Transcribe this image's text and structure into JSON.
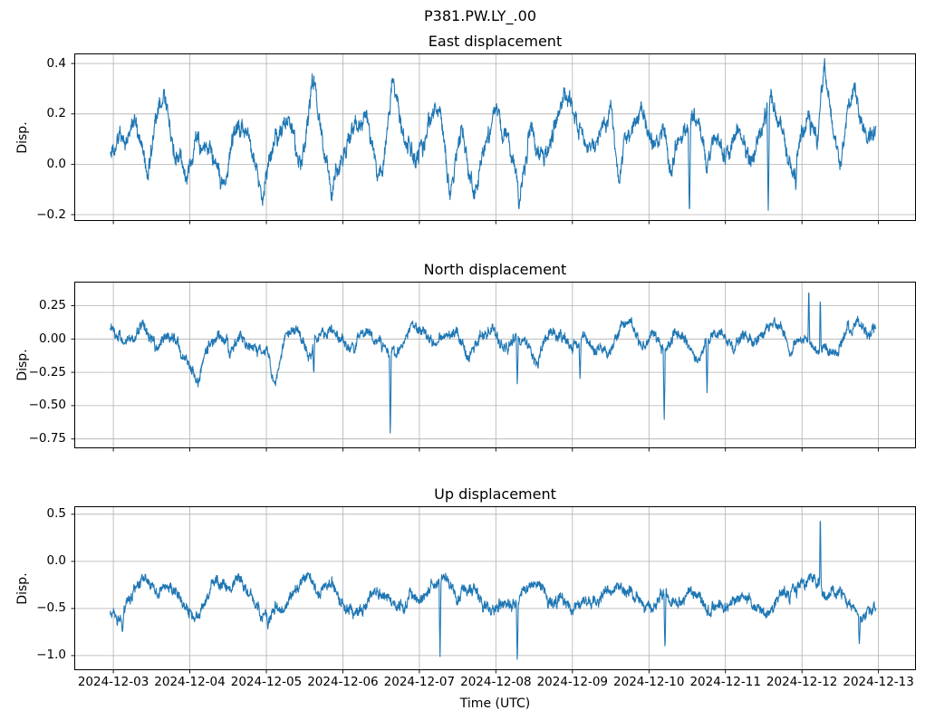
{
  "figure": {
    "suptitle": "P381.PW.LY_.00",
    "xlabel": "Time (UTC)",
    "background_color": "#ffffff",
    "line_color": "#1f77b4",
    "grid_color": "#b0b0b0",
    "frame_color": "#000000",
    "text_color": "#000000"
  },
  "chart_data": {
    "type": "line",
    "title": "P381.PW.LY_.00",
    "xlabel": "Time (UTC)",
    "grid": true,
    "legend": null,
    "x_days_origin": "2024-12-03",
    "xlim_days": [
      -0.51,
      10.49
    ],
    "x_tick_days": [
      0,
      1,
      2,
      3,
      4,
      5,
      6,
      7,
      8,
      9,
      10
    ],
    "x_tick_labels": [
      "2024-12-03",
      "2024-12-04",
      "2024-12-05",
      "2024-12-06",
      "2024-12-07",
      "2024-12-08",
      "2024-12-09",
      "2024-12-10",
      "2024-12-11",
      "2024-12-12",
      "2024-12-13"
    ],
    "subplots": [
      {
        "name": "east",
        "title": "East displacement",
        "ylabel": "Disp.",
        "ylim": [
          -0.225,
          0.44
        ],
        "yticks": [
          -0.2,
          0.0,
          0.2,
          0.4
        ],
        "ytick_labels": [
          "−0.2",
          "0.0",
          "0.2",
          "0.4"
        ],
        "trange": [
          -0.04,
          9.97
        ],
        "clip": [
          -0.215,
          0.42
        ],
        "envelope": [
          [
            -0.04,
            0.05
          ],
          [
            0.1,
            0.1
          ],
          [
            0.3,
            0.16
          ],
          [
            0.45,
            -0.06
          ],
          [
            0.55,
            0.2
          ],
          [
            0.68,
            0.3
          ],
          [
            0.8,
            0.02
          ],
          [
            0.95,
            -0.03
          ],
          [
            1.1,
            0.12
          ],
          [
            1.25,
            0.05
          ],
          [
            1.45,
            -0.1
          ],
          [
            1.6,
            0.18
          ],
          [
            1.75,
            0.1
          ],
          [
            1.95,
            -0.14
          ],
          [
            2.1,
            0.08
          ],
          [
            2.3,
            0.22
          ],
          [
            2.45,
            0.0
          ],
          [
            2.6,
            0.31
          ],
          [
            2.7,
            0.18
          ],
          [
            2.85,
            -0.1
          ],
          [
            3.0,
            0.02
          ],
          [
            3.15,
            0.15
          ],
          [
            3.3,
            0.2
          ],
          [
            3.45,
            -0.08
          ],
          [
            3.55,
            0.05
          ],
          [
            3.65,
            0.33
          ],
          [
            3.8,
            0.1
          ],
          [
            3.95,
            0.0
          ],
          [
            4.1,
            0.15
          ],
          [
            4.25,
            0.21
          ],
          [
            4.4,
            -0.12
          ],
          [
            4.55,
            0.1
          ],
          [
            4.7,
            -0.12
          ],
          [
            4.85,
            0.05
          ],
          [
            5.0,
            0.18
          ],
          [
            5.15,
            0.12
          ],
          [
            5.3,
            -0.1
          ],
          [
            5.45,
            0.15
          ],
          [
            5.6,
            0.05
          ],
          [
            5.75,
            0.1
          ],
          [
            5.9,
            0.3
          ],
          [
            6.05,
            0.15
          ],
          [
            6.2,
            0.05
          ],
          [
            6.35,
            0.1
          ],
          [
            6.5,
            0.2
          ],
          [
            6.6,
            -0.08
          ],
          [
            6.75,
            0.12
          ],
          [
            6.9,
            0.25
          ],
          [
            7.05,
            0.1
          ],
          [
            7.2,
            0.15
          ],
          [
            7.3,
            -0.02
          ],
          [
            7.45,
            0.08
          ],
          [
            7.6,
            0.22
          ],
          [
            7.75,
            0.05
          ],
          [
            7.85,
            0.13
          ],
          [
            8.0,
            0.05
          ],
          [
            8.15,
            0.12
          ],
          [
            8.3,
            0.02
          ],
          [
            8.45,
            0.1
          ],
          [
            8.6,
            0.29
          ],
          [
            8.75,
            0.1
          ],
          [
            8.9,
            -0.05
          ],
          [
            9.0,
            0.12
          ],
          [
            9.1,
            0.2
          ],
          [
            9.2,
            0.05
          ],
          [
            9.3,
            0.4
          ],
          [
            9.4,
            0.1
          ],
          [
            9.5,
            -0.02
          ],
          [
            9.6,
            0.25
          ],
          [
            9.7,
            0.33
          ],
          [
            9.8,
            0.2
          ],
          [
            9.9,
            0.08
          ],
          [
            9.97,
            0.12
          ]
        ],
        "spikes": [
          [
            5.3,
            -0.18,
            0.012
          ],
          [
            7.53,
            -0.21,
            0.015
          ],
          [
            8.56,
            -0.19,
            0.015
          ],
          [
            8.92,
            -0.11,
            0.012
          ]
        ],
        "noise": {
          "seed": 7,
          "jitter": 0.022,
          "octaves": [
            [
              0.35,
              0.028
            ],
            [
              0.12,
              0.03
            ],
            [
              0.04,
              0.028
            ],
            [
              0.013,
              0.026
            ]
          ]
        }
      },
      {
        "name": "north",
        "title": "North displacement",
        "ylabel": "Disp.",
        "ylim": [
          -0.82,
          0.43
        ],
        "yticks": [
          -0.75,
          -0.5,
          -0.25,
          0.0,
          0.25
        ],
        "ytick_labels": [
          "−0.75",
          "−0.50",
          "−0.25",
          "0.00",
          "0.25"
        ],
        "trange": [
          -0.04,
          9.97
        ],
        "clip": [
          -0.8,
          0.41
        ],
        "envelope": [
          [
            -0.04,
            0.12
          ],
          [
            0.1,
            -0.02
          ],
          [
            0.25,
            0.04
          ],
          [
            0.4,
            0.1
          ],
          [
            0.55,
            -0.04
          ],
          [
            0.7,
            0.08
          ],
          [
            0.85,
            -0.02
          ],
          [
            0.95,
            -0.12
          ],
          [
            1.1,
            -0.28
          ],
          [
            1.25,
            0.02
          ],
          [
            1.4,
            0.08
          ],
          [
            1.55,
            -0.06
          ],
          [
            1.7,
            0.04
          ],
          [
            1.85,
            -0.02
          ],
          [
            2.0,
            -0.08
          ],
          [
            2.1,
            -0.3
          ],
          [
            2.25,
            0.05
          ],
          [
            2.4,
            0.1
          ],
          [
            2.55,
            -0.15
          ],
          [
            2.7,
            0.02
          ],
          [
            2.85,
            0.08
          ],
          [
            3.0,
            -0.02
          ],
          [
            3.15,
            -0.1
          ],
          [
            3.3,
            0.05
          ],
          [
            3.45,
            0.0
          ],
          [
            3.6,
            -0.08
          ],
          [
            3.75,
            -0.12
          ],
          [
            3.9,
            0.06
          ],
          [
            4.05,
            0.1
          ],
          [
            4.2,
            -0.05
          ],
          [
            4.35,
            0.02
          ],
          [
            4.5,
            0.08
          ],
          [
            4.65,
            -0.15
          ],
          [
            4.8,
            -0.02
          ],
          [
            4.95,
            0.06
          ],
          [
            5.1,
            -0.1
          ],
          [
            5.25,
            0.02
          ],
          [
            5.4,
            -0.05
          ],
          [
            5.55,
            -0.18
          ],
          [
            5.7,
            0.08
          ],
          [
            5.85,
            0.02
          ],
          [
            6.0,
            -0.06
          ],
          [
            6.15,
            0.05
          ],
          [
            6.3,
            -0.02
          ],
          [
            6.45,
            -0.12
          ],
          [
            6.6,
            0.06
          ],
          [
            6.75,
            0.1
          ],
          [
            6.9,
            -0.04
          ],
          [
            7.05,
            0.02
          ],
          [
            7.2,
            -0.1
          ],
          [
            7.35,
            0.05
          ],
          [
            7.5,
            0.0
          ],
          [
            7.65,
            -0.15
          ],
          [
            7.8,
            0.04
          ],
          [
            7.95,
            0.08
          ],
          [
            8.1,
            -0.06
          ],
          [
            8.25,
            0.02
          ],
          [
            8.4,
            -0.02
          ],
          [
            8.55,
            0.06
          ],
          [
            8.7,
            0.12
          ],
          [
            8.85,
            -0.06
          ],
          [
            9.0,
            0.04
          ],
          [
            9.15,
            0.0
          ],
          [
            9.3,
            -0.08
          ],
          [
            9.45,
            -0.12
          ],
          [
            9.6,
            0.08
          ],
          [
            9.75,
            0.12
          ],
          [
            9.9,
            0.06
          ],
          [
            9.97,
            0.1
          ]
        ],
        "spikes": [
          [
            1.08,
            -0.33,
            0.015
          ],
          [
            2.1,
            -0.32,
            0.015
          ],
          [
            2.62,
            -0.27,
            0.012
          ],
          [
            3.62,
            -0.75,
            0.012
          ],
          [
            5.28,
            -0.36,
            0.012
          ],
          [
            6.1,
            -0.31,
            0.012
          ],
          [
            7.2,
            -0.63,
            0.012
          ],
          [
            7.76,
            -0.42,
            0.012
          ],
          [
            9.09,
            0.4,
            0.01
          ],
          [
            9.24,
            0.33,
            0.01
          ]
        ],
        "noise": {
          "seed": 13,
          "jitter": 0.026,
          "octaves": [
            [
              0.35,
              0.03
            ],
            [
              0.12,
              0.032
            ],
            [
              0.04,
              0.03
            ],
            [
              0.013,
              0.028
            ]
          ]
        }
      },
      {
        "name": "up",
        "title": "Up displacement",
        "ylabel": "Disp.",
        "ylim": [
          -1.155,
          0.585
        ],
        "yticks": [
          -1.0,
          -0.5,
          0.0,
          0.5
        ],
        "ytick_labels": [
          "−1.0",
          "−0.5",
          "0.0",
          "0.5"
        ],
        "trange": [
          -0.04,
          9.97
        ],
        "clip": [
          -1.13,
          0.55
        ],
        "envelope": [
          [
            -0.04,
            -0.5
          ],
          [
            0.08,
            -0.62
          ],
          [
            0.2,
            -0.4
          ],
          [
            0.35,
            -0.2
          ],
          [
            0.45,
            -0.15
          ],
          [
            0.6,
            -0.3
          ],
          [
            0.75,
            -0.25
          ],
          [
            0.9,
            -0.45
          ],
          [
            1.05,
            -0.55
          ],
          [
            1.2,
            -0.4
          ],
          [
            1.35,
            -0.2
          ],
          [
            1.5,
            -0.25
          ],
          [
            1.65,
            -0.2
          ],
          [
            1.8,
            -0.35
          ],
          [
            1.95,
            -0.55
          ],
          [
            2.1,
            -0.5
          ],
          [
            2.25,
            -0.45
          ],
          [
            2.4,
            -0.25
          ],
          [
            2.55,
            -0.15
          ],
          [
            2.7,
            -0.3
          ],
          [
            2.85,
            -0.25
          ],
          [
            3.0,
            -0.4
          ],
          [
            3.15,
            -0.5
          ],
          [
            3.3,
            -0.45
          ],
          [
            3.45,
            -0.35
          ],
          [
            3.6,
            -0.4
          ],
          [
            3.75,
            -0.45
          ],
          [
            3.9,
            -0.35
          ],
          [
            4.05,
            -0.4
          ],
          [
            4.2,
            -0.3
          ],
          [
            4.35,
            -0.2
          ],
          [
            4.5,
            -0.4
          ],
          [
            4.65,
            -0.3
          ],
          [
            4.8,
            -0.45
          ],
          [
            4.95,
            -0.55
          ],
          [
            5.1,
            -0.4
          ],
          [
            5.25,
            -0.45
          ],
          [
            5.4,
            -0.35
          ],
          [
            5.55,
            -0.25
          ],
          [
            5.7,
            -0.4
          ],
          [
            5.85,
            -0.3
          ],
          [
            6.0,
            -0.5
          ],
          [
            6.15,
            -0.45
          ],
          [
            6.3,
            -0.5
          ],
          [
            6.45,
            -0.35
          ],
          [
            6.6,
            -0.25
          ],
          [
            6.75,
            -0.4
          ],
          [
            6.9,
            -0.5
          ],
          [
            7.05,
            -0.45
          ],
          [
            7.2,
            -0.35
          ],
          [
            7.35,
            -0.45
          ],
          [
            7.5,
            -0.35
          ],
          [
            7.65,
            -0.4
          ],
          [
            7.8,
            -0.55
          ],
          [
            7.95,
            -0.45
          ],
          [
            8.1,
            -0.4
          ],
          [
            8.25,
            -0.35
          ],
          [
            8.4,
            -0.45
          ],
          [
            8.55,
            -0.5
          ],
          [
            8.7,
            -0.35
          ],
          [
            8.85,
            -0.3
          ],
          [
            9.0,
            -0.25
          ],
          [
            9.15,
            -0.2
          ],
          [
            9.3,
            -0.35
          ],
          [
            9.45,
            -0.3
          ],
          [
            9.6,
            -0.45
          ],
          [
            9.75,
            -0.55
          ],
          [
            9.9,
            -0.5
          ],
          [
            9.97,
            -0.45
          ]
        ],
        "spikes": [
          [
            0.12,
            -0.76,
            0.015
          ],
          [
            2.02,
            -0.72,
            0.015
          ],
          [
            4.27,
            -1.02,
            0.012
          ],
          [
            5.28,
            -1.08,
            0.012
          ],
          [
            7.21,
            -0.95,
            0.012
          ],
          [
            9.24,
            0.52,
            0.01
          ],
          [
            9.75,
            -0.88,
            0.012
          ]
        ],
        "noise": {
          "seed": 29,
          "jitter": 0.04,
          "octaves": [
            [
              0.35,
              0.045
            ],
            [
              0.12,
              0.05
            ],
            [
              0.04,
              0.045
            ],
            [
              0.013,
              0.04
            ]
          ]
        }
      }
    ]
  }
}
